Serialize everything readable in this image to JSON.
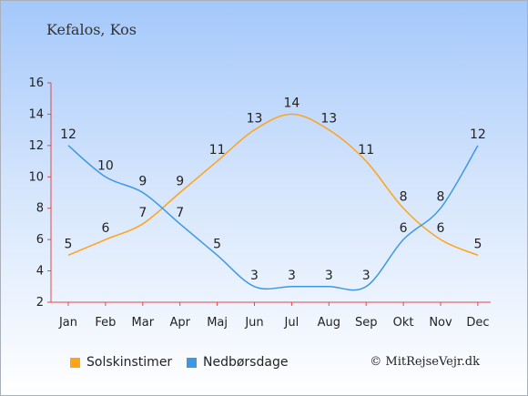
{
  "header": {
    "place": "Kefalos, Kos"
  },
  "footer": {
    "copyright": "© MitRejseVejr.dk"
  },
  "chart_data": {
    "type": "line",
    "categories": [
      "Jan",
      "Feb",
      "Mar",
      "Apr",
      "Maj",
      "Jun",
      "Jul",
      "Aug",
      "Sep",
      "Okt",
      "Nov",
      "Dec"
    ],
    "ylim": [
      2,
      16
    ],
    "yticks": [
      2,
      4,
      6,
      8,
      10,
      12,
      14,
      16
    ],
    "grid": false,
    "legend_position": "bottom",
    "series": [
      {
        "name": "Solskinstimer",
        "color": "#ffa319",
        "values": [
          5,
          6,
          7,
          9,
          11,
          13,
          14,
          13,
          11,
          8,
          6,
          5
        ]
      },
      {
        "name": "Nedbørsdage",
        "color": "#3d97e6",
        "values": [
          12,
          10,
          9,
          7,
          5,
          3,
          3,
          3,
          3,
          6,
          8,
          12
        ]
      }
    ]
  }
}
